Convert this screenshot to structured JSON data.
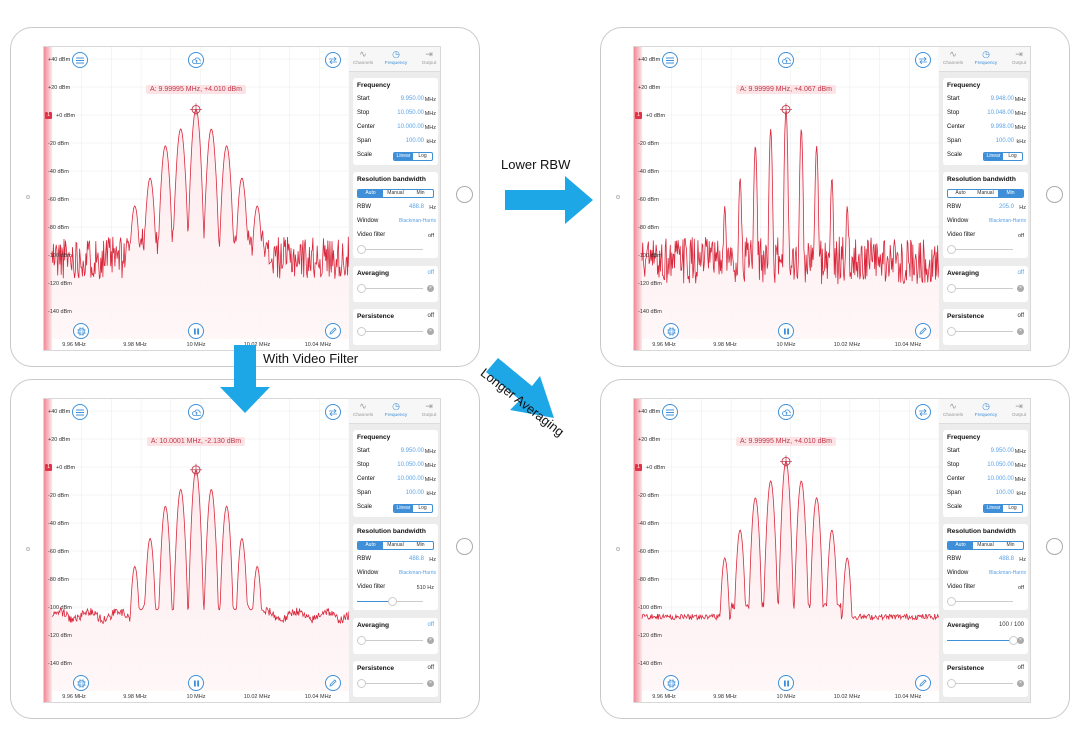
{
  "annotations": {
    "lower_rbw": "Lower RBW",
    "with_video_filter": "With Video Filter",
    "longer_averaging": "Longer Averaging"
  },
  "colors": {
    "accent": "#3f8fd8",
    "trace": "#d9283c",
    "arrow": "#1ea7e6"
  },
  "icons": {
    "menu": "menu-icon",
    "cloud": "cloud-upload-icon",
    "swap": "swap-icon",
    "grid": "crosshair-grid-icon",
    "pause": "pause-icon",
    "pencil": "pencil-icon",
    "channels": "wave-icon",
    "frequency": "clock-icon",
    "output": "output-icon"
  },
  "common": {
    "y_ticks": [
      "+40 dBm",
      "+20 dBm",
      "+0 dBm",
      "-20 dBm",
      "-40 dBm",
      "-60 dBm",
      "-80 dBm",
      "-100 dBm",
      "-120 dBm",
      "-140 dBm"
    ],
    "x_ticks": [
      "9.96 MHz",
      "9.98 MHz",
      "10 MHz",
      "10.02 MHz",
      "10.04 MHz"
    ],
    "ref_flag": "1",
    "tabs": [
      "Channels",
      "Frequency",
      "Output"
    ],
    "frequency_title": "Frequency",
    "labels": {
      "start": "Start",
      "stop": "Stop",
      "center": "Center",
      "span": "Span",
      "scale": "Scale"
    },
    "units": {
      "mhz": "MHz",
      "khz": "kHz",
      "hz": "Hz"
    },
    "scale_options": [
      "Linear",
      "Log"
    ],
    "rbw_title": "Resolution bandwidth",
    "rbw_modes": [
      "Auto",
      "Manual",
      "Min"
    ],
    "rbw_label": "RBW",
    "window_label": "Window",
    "window_value": "Blackman-Harris",
    "video_filter_label": "Video filter",
    "averaging_label": "Averaging",
    "persistence_label": "Persistence",
    "off": "off"
  },
  "screens": [
    {
      "id": "original",
      "marker": "A: 9.99995 MHz, +4.010 dBm",
      "start": "9.950.00",
      "stop": "10.050.00",
      "center": "10.000.00",
      "span": "100.00",
      "scale_selected": "Linear",
      "rbw_mode_selected": "Auto",
      "rbw": "488.8",
      "video_filter": "off",
      "video_filter_level": 0,
      "averaging": "off",
      "averaging_level": 0,
      "persistence": "off",
      "style": "noisy"
    },
    {
      "id": "lower_rbw",
      "marker": "A: 9.99999 MHz, +4.067 dBm",
      "start": "9.948.00",
      "stop": "10.048.00",
      "center": "9.998.00",
      "span": "100.00",
      "scale_selected": "Linear",
      "rbw_mode_selected": "Min",
      "rbw": "205.0",
      "video_filter": "off",
      "video_filter_level": 0,
      "averaging": "off",
      "averaging_level": 0,
      "persistence": "off",
      "style": "narrow"
    },
    {
      "id": "video_filter",
      "marker": "A: 10.0001 MHz, -2.130 dBm",
      "start": "9.950.00",
      "stop": "10.050.00",
      "center": "10.000.00",
      "span": "100.00",
      "scale_selected": "Linear",
      "rbw_mode_selected": "Auto",
      "rbw": "488.8",
      "video_filter": "510 Hz",
      "video_filter_level": 0.5,
      "averaging": "off",
      "averaging_level": 0,
      "persistence": "off",
      "style": "smooth"
    },
    {
      "id": "longer_averaging",
      "marker": "A: 9.99995 MHz, +4.010 dBm",
      "start": "9.950.00",
      "stop": "10.050.00",
      "center": "10.000.00",
      "span": "100.00",
      "scale_selected": "Linear",
      "rbw_mode_selected": "Auto",
      "rbw": "488.8",
      "video_filter": "off",
      "video_filter_level": 0,
      "averaging": "100 / 100",
      "averaging_level": 1,
      "persistence": "off",
      "style": "averaged"
    }
  ]
}
